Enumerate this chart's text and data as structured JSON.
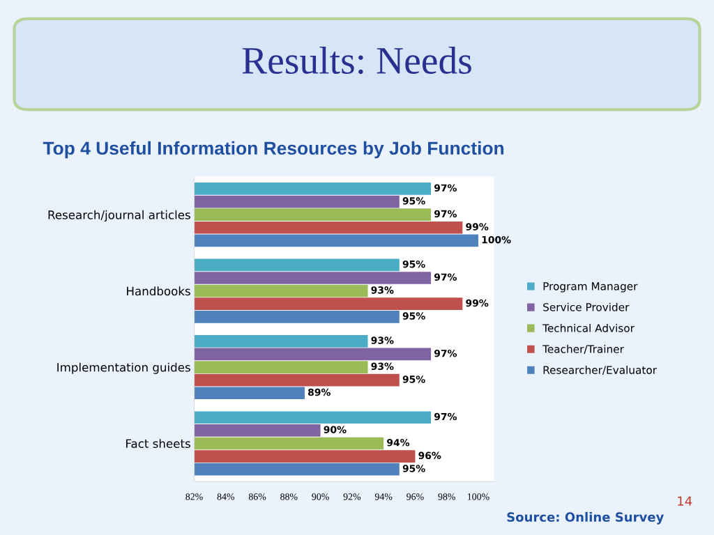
{
  "chart_data": {
    "type": "bar",
    "orientation": "horizontal",
    "title": "Results: Needs",
    "subtitle": "Top 4 Useful Information Resources by Job Function",
    "categories": [
      "Research/journal articles",
      "Handbooks",
      "Implementation guides",
      "Fact sheets"
    ],
    "series": [
      {
        "name": "Program Manager",
        "color": "#4bacc6",
        "values": [
          97,
          95,
          93,
          97
        ],
        "value_labels": [
          "97%",
          "95%",
          "93%",
          "97%"
        ]
      },
      {
        "name": "Service Provider",
        "color": "#8064a2",
        "values": [
          95,
          97,
          97,
          90
        ],
        "value_labels": [
          "95%",
          "97%",
          "97%",
          "90%"
        ]
      },
      {
        "name": "Technical Advisor",
        "color": "#9bbb59",
        "values": [
          97,
          93,
          93,
          94
        ],
        "value_labels": [
          "97%",
          "93%",
          "93%",
          "94%"
        ]
      },
      {
        "name": "Teacher/Trainer",
        "color": "#c0504d",
        "values": [
          99,
          99,
          95,
          96
        ],
        "value_labels": [
          "99%",
          "99%",
          "95%",
          "96%"
        ]
      },
      {
        "name": "Researcher/Evaluator",
        "color": "#4f81bd",
        "values": [
          100,
          95,
          89,
          95
        ],
        "value_labels": [
          "100%",
          "95%",
          "89%",
          "95%"
        ]
      }
    ],
    "xlim": [
      82,
      101
    ],
    "xticks": [
      {
        "value": 82,
        "label": "82%"
      },
      {
        "value": 84,
        "label": "84%"
      },
      {
        "value": 86,
        "label": "86%"
      },
      {
        "value": 88,
        "label": "88%"
      },
      {
        "value": 90,
        "label": "90%"
      },
      {
        "value": 92,
        "label": "92%"
      },
      {
        "value": 94,
        "label": "94%"
      },
      {
        "value": 96,
        "label": "96%"
      },
      {
        "value": 98,
        "label": "98%"
      },
      {
        "value": 100,
        "label": "100%"
      }
    ],
    "legend": "right",
    "grid": false,
    "annotations": [
      "Source: Online Survey",
      "14"
    ]
  }
}
